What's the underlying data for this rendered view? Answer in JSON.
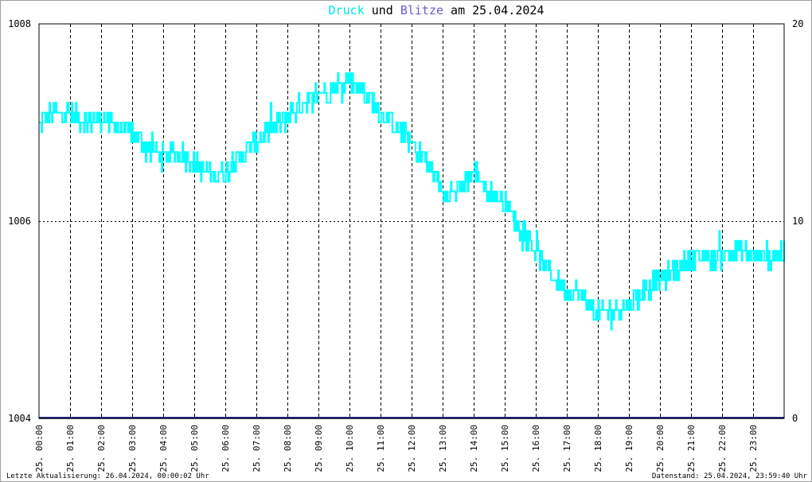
{
  "title": {
    "part1": "Druck",
    "part2": " und ",
    "part3": "Blitze",
    "part4": " am 25.04.2024"
  },
  "footer": {
    "left": "Letzte Aktualisierung: 26.04.2024, 00:00:02 Uhr",
    "right": "Datenstand: 25.04.2024, 23:59:40 Uhr"
  },
  "colors": {
    "pressure": "#00ffff",
    "lightning": "#000080",
    "title_blitze": "#6a5acd",
    "grid": "#000000",
    "frame": "#a0a0a0"
  },
  "chart_data": {
    "type": "line",
    "title": "Druck und Blitze am 25.04.2024",
    "y_left": {
      "min": 1004,
      "max": 1008,
      "ticks": [
        1004,
        1006,
        1008
      ]
    },
    "y_right": {
      "min": 0,
      "max": 20,
      "ticks": [
        0,
        10,
        20
      ]
    },
    "x_ticks": [
      "25. 00:00",
      "25. 01:00",
      "25. 02:00",
      "25. 03:00",
      "25. 04:00",
      "25. 05:00",
      "25. 06:00",
      "25. 07:00",
      "25. 08:00",
      "25. 09:00",
      "25. 10:00",
      "25. 11:00",
      "25. 12:00",
      "25. 13:00",
      "25. 14:00",
      "25. 15:00",
      "25. 16:00",
      "25. 17:00",
      "25. 18:00",
      "25. 19:00",
      "25. 20:00",
      "25. 21:00",
      "25. 22:00",
      "25. 23:00"
    ],
    "grid": true,
    "series": [
      {
        "name": "Druck",
        "axis": "left",
        "x_hours": [
          0,
          0.5,
          1,
          1.5,
          2,
          2.5,
          3,
          3.5,
          4,
          4.5,
          5,
          5.5,
          6,
          6.5,
          7,
          7.5,
          8,
          8.5,
          9,
          9.5,
          10,
          10.5,
          11,
          11.5,
          12,
          12.5,
          13,
          13.5,
          14,
          14.5,
          15,
          15.5,
          16,
          16.5,
          17,
          17.5,
          18,
          18.5,
          19,
          19.5,
          20,
          20.5,
          21,
          21.5,
          22,
          22.5,
          23,
          23.5,
          24
        ],
        "values": [
          1007.0,
          1007.1,
          1007.1,
          1007.0,
          1007.05,
          1006.95,
          1006.9,
          1006.75,
          1006.65,
          1006.7,
          1006.6,
          1006.45,
          1006.5,
          1006.65,
          1006.8,
          1006.95,
          1007.05,
          1007.2,
          1007.3,
          1007.35,
          1007.45,
          1007.3,
          1007.1,
          1006.95,
          1006.8,
          1006.6,
          1006.3,
          1006.3,
          1006.5,
          1006.3,
          1006.2,
          1005.95,
          1005.7,
          1005.45,
          1005.3,
          1005.25,
          1005.05,
          1005.1,
          1005.15,
          1005.3,
          1005.4,
          1005.5,
          1005.6,
          1005.65,
          1005.65,
          1005.7,
          1005.65,
          1005.65,
          1005.7
        ]
      },
      {
        "name": "Blitze",
        "axis": "right",
        "x_hours": [
          0,
          24
        ],
        "values": [
          0,
          0
        ]
      }
    ]
  }
}
